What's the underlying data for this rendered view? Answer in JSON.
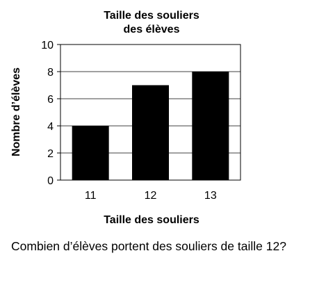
{
  "chart_data": {
    "type": "bar",
    "title_lines": [
      "Taille des souliers",
      "des élèves"
    ],
    "xlabel": "Taille des souliers",
    "ylabel": "Nombre d’élèves",
    "categories": [
      "11",
      "12",
      "13"
    ],
    "values": [
      4,
      7,
      8
    ],
    "ylim": [
      0,
      10
    ],
    "yticks": [
      "0",
      "2",
      "4",
      "6",
      "8",
      "10"
    ],
    "grid": true,
    "bar_color": "#000000",
    "grid_color": "#000000"
  },
  "question": "Combien d’élèves portent des souliers de taille 12?"
}
